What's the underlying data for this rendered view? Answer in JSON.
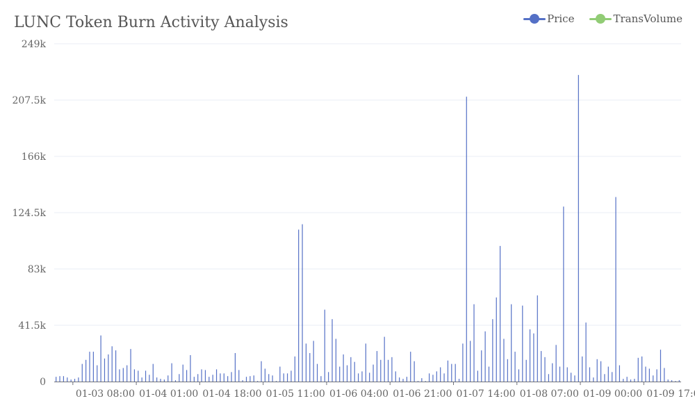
{
  "chart_data": {
    "type": "bar",
    "title": "LUNC Token Burn Activity Analysis",
    "xlabel": "",
    "ylabel": "",
    "ylim": [
      0,
      249000
    ],
    "y_ticks": [
      "0",
      "41.5k",
      "83k",
      "124.5k",
      "166k",
      "207.5k",
      "249k"
    ],
    "y_tick_values": [
      0,
      41500,
      83000,
      124500,
      166000,
      207500,
      249000
    ],
    "x_ticks": [
      "01-03 08:00",
      "01-04 01:00",
      "01-04 18:00",
      "01-05 11:00",
      "01-06 04:00",
      "01-06 21:00",
      "01-07 14:00",
      "01-08 07:00",
      "01-09 00:00",
      "01-09 17:00"
    ],
    "x_tick_positions": [
      5,
      22,
      39,
      56,
      73,
      90,
      107,
      124,
      141,
      158
    ],
    "grid": true,
    "legend_position": "top-right",
    "colors": {
      "price": "#5470c6",
      "volume": "#91cc75",
      "axis": "#6e7079",
      "grid": "#e8ecf4"
    },
    "legend": [
      {
        "name": "Price",
        "color": "#5470c6"
      },
      {
        "name": "TransVolume",
        "color": "#91cc75"
      }
    ],
    "series": [
      {
        "name": "Price",
        "values": [
          3500,
          4000,
          4000,
          3000,
          1500,
          2000,
          3000,
          13000,
          16000,
          22000,
          22000,
          12000,
          34000,
          17000,
          20000,
          26000,
          23000,
          9000,
          10000,
          12000,
          24000,
          9000,
          8000,
          3000,
          8000,
          5000,
          13000,
          3000,
          2000,
          1500,
          4500,
          13500,
          1000,
          5500,
          12500,
          8500,
          19500,
          3500,
          5500,
          9000,
          8500,
          3500,
          5000,
          9000,
          6000,
          6000,
          4000,
          7000,
          21000,
          8500,
          1000,
          3500,
          4000,
          4500,
          0,
          15000,
          9500,
          5500,
          4500,
          0,
          11000,
          6000,
          6000,
          8000,
          18500,
          112000,
          116000,
          28000,
          21000,
          30000,
          13000,
          4000,
          53000,
          7000,
          46000,
          31500,
          11000,
          20000,
          12000,
          18000,
          14500,
          6000,
          7500,
          28000,
          6500,
          12500,
          22500,
          16000,
          33000,
          16000,
          18000,
          7500,
          3000,
          2000,
          3500,
          22000,
          15000,
          0,
          2500,
          0,
          6000,
          5000,
          7500,
          10500,
          6000,
          15500,
          13000,
          13000,
          2000,
          28000,
          210000,
          30000,
          57000,
          8000,
          23000,
          37000,
          11000,
          46000,
          62000,
          100000,
          31500,
          16500,
          57000,
          22000,
          9000,
          56000,
          16000,
          38500,
          35500,
          63500,
          22500,
          18000,
          5500,
          13500,
          27000,
          11000,
          129000,
          10500,
          6500,
          4500,
          226000,
          18500,
          43500,
          10500,
          3000,
          16500,
          15000,
          5500,
          11000,
          7000,
          136000,
          12000,
          2000,
          3500,
          1500,
          2000,
          17500,
          18500,
          11000,
          9500,
          4500,
          9000,
          23500,
          10000,
          1500,
          1000,
          0,
          1000
        ]
      },
      {
        "name": "TransVolume",
        "values": []
      }
    ]
  }
}
